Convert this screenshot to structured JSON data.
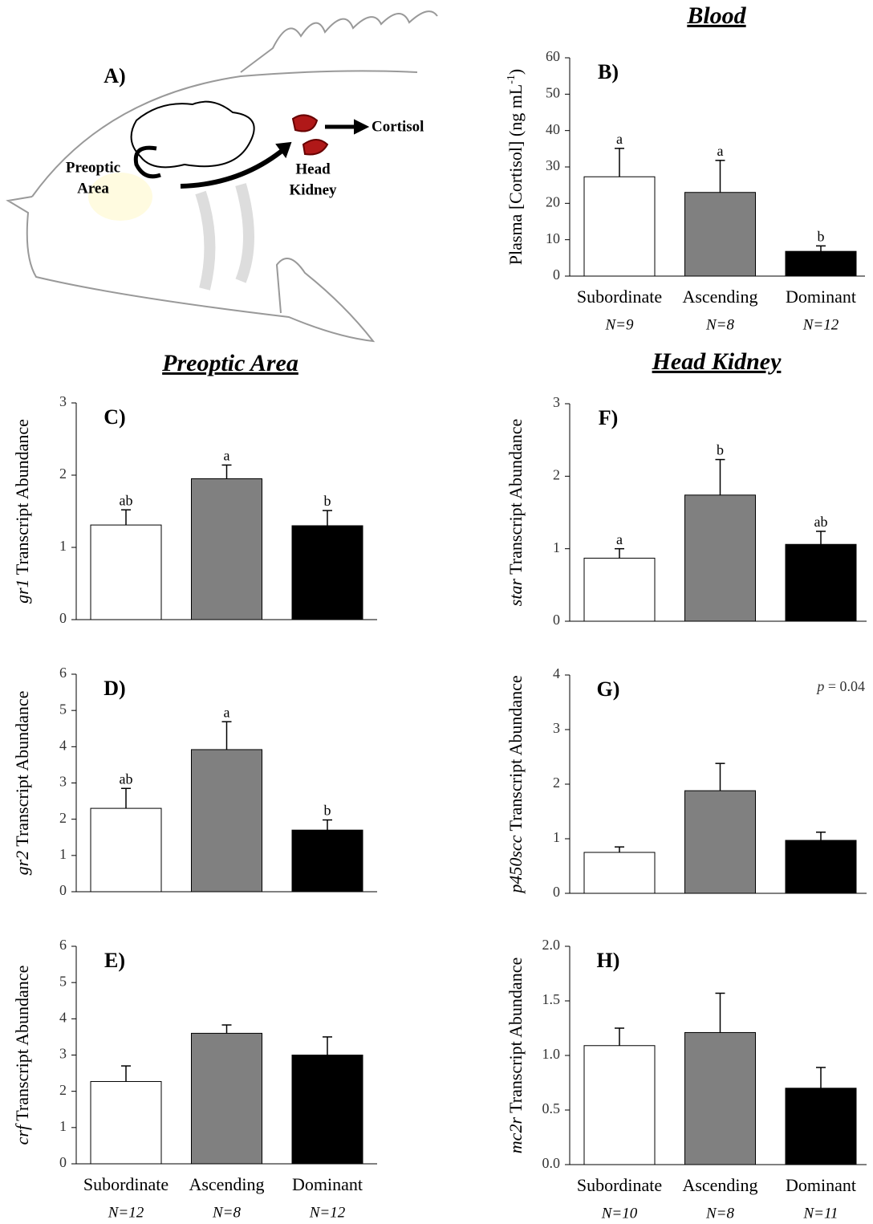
{
  "sections": [
    "Blood",
    "Preoptic Area",
    "Head Kidney"
  ],
  "diagram": {
    "label": "A)",
    "preoptic": [
      "Preoptic",
      "Area"
    ],
    "kidney": [
      "Head",
      "Kidney"
    ],
    "output": "Cortisol"
  },
  "chart_data": [
    {
      "type": "bar",
      "panel": "B)",
      "ylabel_parts": [
        {
          "text": "Plasma [Cortisol] (ng mL"
        },
        {
          "text": "-1",
          "style": "sup"
        },
        {
          "text": ")"
        }
      ],
      "categories": [
        "Subordinate",
        "Ascending",
        "Dominant"
      ],
      "n_labels": [
        "N=9",
        "N=8",
        "N=12"
      ],
      "values": [
        27.3,
        23,
        6.8
      ],
      "errors": [
        7.8,
        8.8,
        1.5
      ],
      "sig_labels": [
        "a",
        "a",
        "b"
      ],
      "colors": [
        "#ffffff",
        "#808080",
        "#000000"
      ],
      "ylim": [
        0,
        60
      ],
      "yticks": [
        0,
        10,
        20,
        30,
        40,
        50,
        60
      ]
    },
    {
      "type": "bar",
      "panel": "C)",
      "ylabel_parts": [
        {
          "text": "gr1",
          "style": "italic"
        },
        {
          "text": " Transcript Abundance"
        }
      ],
      "categories": [
        null,
        null,
        null
      ],
      "values": [
        1.31,
        1.95,
        1.3
      ],
      "errors": [
        0.21,
        0.19,
        0.21
      ],
      "sig_labels": [
        "ab",
        "a",
        "b"
      ],
      "colors": [
        "#ffffff",
        "#808080",
        "#000000"
      ],
      "ylim": [
        0,
        3
      ],
      "yticks": [
        0,
        1,
        2,
        3
      ]
    },
    {
      "type": "bar",
      "panel": "D)",
      "ylabel_parts": [
        {
          "text": "gr2",
          "style": "italic"
        },
        {
          "text": " Transcript Abundance"
        }
      ],
      "categories": [
        null,
        null,
        null
      ],
      "values": [
        2.3,
        3.92,
        1.7
      ],
      "errors": [
        0.55,
        0.77,
        0.28
      ],
      "sig_labels": [
        "ab",
        "a",
        "b"
      ],
      "colors": [
        "#ffffff",
        "#808080",
        "#000000"
      ],
      "ylim": [
        0,
        6
      ],
      "yticks": [
        0,
        1,
        2,
        3,
        4,
        5,
        6
      ]
    },
    {
      "type": "bar",
      "panel": "E)",
      "ylabel_parts": [
        {
          "text": "crf",
          "style": "italic"
        },
        {
          "text": " Transcript Abundance"
        }
      ],
      "categories": [
        "Subordinate",
        "Ascending",
        "Dominant"
      ],
      "n_labels": [
        "N=12",
        "N=8",
        "N=12"
      ],
      "values": [
        2.27,
        3.6,
        3.0
      ],
      "errors": [
        0.43,
        0.23,
        0.5
      ],
      "colors": [
        "#ffffff",
        "#808080",
        "#000000"
      ],
      "ylim": [
        0,
        6
      ],
      "yticks": [
        0,
        1,
        2,
        3,
        4,
        5,
        6
      ]
    },
    {
      "type": "bar",
      "panel": "F)",
      "ylabel_parts": [
        {
          "text": "star",
          "style": "italic"
        },
        {
          "text": " Transcript Abundance"
        }
      ],
      "categories": [
        null,
        null,
        null
      ],
      "values": [
        0.87,
        1.74,
        1.06
      ],
      "errors": [
        0.13,
        0.49,
        0.18
      ],
      "sig_labels": [
        "a",
        "b",
        "ab"
      ],
      "colors": [
        "#ffffff",
        "#808080",
        "#000000"
      ],
      "ylim": [
        0,
        3
      ],
      "yticks": [
        0,
        1,
        2,
        3
      ]
    },
    {
      "type": "bar",
      "panel": "G)",
      "ylabel_parts": [
        {
          "text": "p450scc",
          "style": "italic"
        },
        {
          "text": " Transcript Abundance"
        }
      ],
      "annotation_parts": [
        {
          "text": "p",
          "style": "italic"
        },
        {
          "text": " = 0.04"
        }
      ],
      "categories": [
        null,
        null,
        null
      ],
      "values": [
        0.75,
        1.88,
        0.97
      ],
      "errors": [
        0.1,
        0.5,
        0.15
      ],
      "colors": [
        "#ffffff",
        "#808080",
        "#000000"
      ],
      "ylim": [
        0,
        4
      ],
      "yticks": [
        0,
        1,
        2,
        3,
        4
      ]
    },
    {
      "type": "bar",
      "panel": "H)",
      "ylabel_parts": [
        {
          "text": "mc2r",
          "style": "italic"
        },
        {
          "text": " Transcript Abundance"
        }
      ],
      "categories": [
        "Subordinate",
        "Ascending",
        "Dominant"
      ],
      "n_labels": [
        "N=10",
        "N=8",
        "N=11"
      ],
      "values": [
        1.09,
        1.21,
        0.7
      ],
      "errors": [
        0.16,
        0.36,
        0.19
      ],
      "colors": [
        "#ffffff",
        "#808080",
        "#000000"
      ],
      "ylim": [
        0,
        2
      ],
      "yticks": [
        {
          "value": 0,
          "label": "0.0"
        },
        {
          "value": 0.5,
          "label": "0.5"
        },
        {
          "value": 1,
          "label": "1.0"
        },
        {
          "value": 1.5,
          "label": "1.5"
        },
        {
          "value": 2,
          "label": "2.0"
        }
      ]
    }
  ]
}
